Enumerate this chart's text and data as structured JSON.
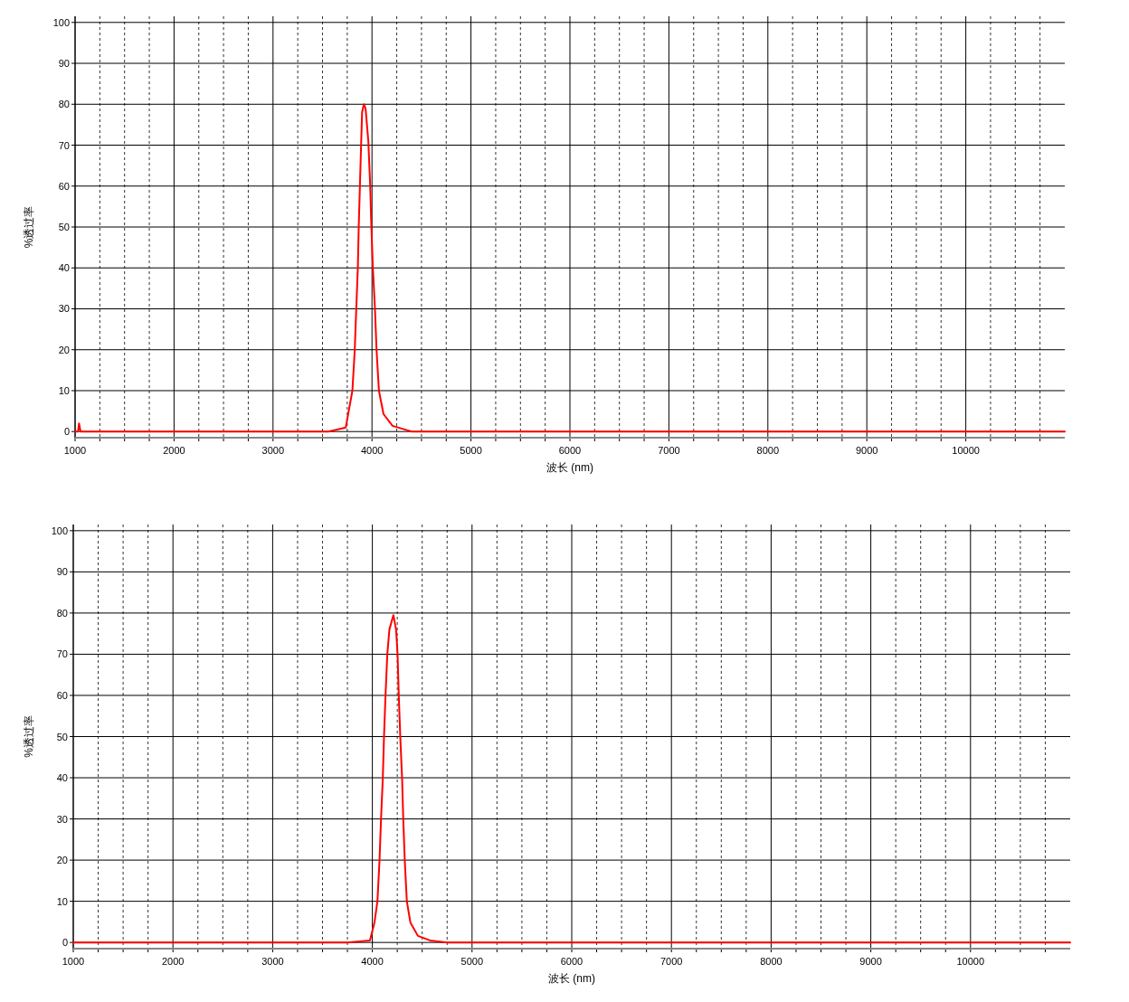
{
  "chart_data": [
    {
      "type": "line",
      "xlabel": "波长 (nm)",
      "ylabel": "%透过率",
      "grid": true,
      "xlim": [
        1000,
        11000
      ],
      "ylim": [
        -1.5,
        101.5
      ],
      "xticks": [
        1000,
        {
          "value": 1250,
          "label": null
        },
        {
          "value": 1500,
          "label": null
        },
        {
          "value": 1750,
          "label": null
        },
        2000,
        {
          "value": 2250,
          "label": null
        },
        {
          "value": 2500,
          "label": null
        },
        {
          "value": 2750,
          "label": null
        },
        3000,
        {
          "value": 3250,
          "label": null
        },
        {
          "value": 3500,
          "label": null
        },
        {
          "value": 3750,
          "label": null
        },
        4000,
        {
          "value": 4250,
          "label": null
        },
        {
          "value": 4500,
          "label": null
        },
        {
          "value": 4750,
          "label": null
        },
        5000,
        {
          "value": 5250,
          "label": null
        },
        {
          "value": 5500,
          "label": null
        },
        {
          "value": 5750,
          "label": null
        },
        6000,
        {
          "value": 6250,
          "label": null
        },
        {
          "value": 6500,
          "label": null
        },
        {
          "value": 6750,
          "label": null
        },
        7000,
        {
          "value": 7250,
          "label": null
        },
        {
          "value": 7500,
          "label": null
        },
        {
          "value": 7750,
          "label": null
        },
        8000,
        {
          "value": 8250,
          "label": null
        },
        {
          "value": 8500,
          "label": null
        },
        {
          "value": 8750,
          "label": null
        },
        9000,
        {
          "value": 9250,
          "label": null
        },
        {
          "value": 9500,
          "label": null
        },
        {
          "value": 9750,
          "label": null
        },
        10000,
        {
          "value": 10250,
          "label": null
        },
        {
          "value": 10500,
          "label": null
        },
        {
          "value": 10750,
          "label": null
        }
      ],
      "yticks": [
        0,
        10,
        20,
        30,
        40,
        50,
        60,
        70,
        80,
        90,
        100
      ],
      "series": [
        {
          "color": "#ff0000",
          "x": [
            1000,
            1030,
            1040,
            1055,
            3560,
            3735,
            3802,
            3826,
            3841,
            3857,
            3866,
            3878,
            3890,
            3900,
            3918,
            3935,
            3963,
            3982,
            3994,
            4009,
            4030,
            4046,
            4070,
            4116,
            4207,
            4345,
            4400,
            11000
          ],
          "values": [
            0,
            0,
            2,
            0,
            0,
            1,
            10,
            20,
            30,
            40,
            50,
            60,
            70,
            78,
            80,
            79,
            71,
            60,
            50,
            40,
            30,
            20,
            10,
            4.3,
            1.4,
            0.4,
            0,
            0
          ]
        }
      ]
    },
    {
      "type": "line",
      "xlabel": "波长 (nm)",
      "ylabel": "%透过率",
      "grid": true,
      "xlim": [
        1000,
        11000
      ],
      "ylim": [
        -1.5,
        101.5
      ],
      "xticks": [
        1000,
        {
          "value": 1250,
          "label": null
        },
        {
          "value": 1500,
          "label": null
        },
        {
          "value": 1750,
          "label": null
        },
        2000,
        {
          "value": 2250,
          "label": null
        },
        {
          "value": 2500,
          "label": null
        },
        {
          "value": 2750,
          "label": null
        },
        3000,
        {
          "value": 3250,
          "label": null
        },
        {
          "value": 3500,
          "label": null
        },
        {
          "value": 3750,
          "label": null
        },
        4000,
        {
          "value": 4250,
          "label": null
        },
        {
          "value": 4500,
          "label": null
        },
        {
          "value": 4750,
          "label": null
        },
        5000,
        {
          "value": 5250,
          "label": null
        },
        {
          "value": 5500,
          "label": null
        },
        {
          "value": 5750,
          "label": null
        },
        6000,
        {
          "value": 6250,
          "label": null
        },
        {
          "value": 6500,
          "label": null
        },
        {
          "value": 6750,
          "label": null
        },
        7000,
        {
          "value": 7250,
          "label": null
        },
        {
          "value": 7500,
          "label": null
        },
        {
          "value": 7750,
          "label": null
        },
        8000,
        {
          "value": 8250,
          "label": null
        },
        {
          "value": 8500,
          "label": null
        },
        {
          "value": 8750,
          "label": null
        },
        9000,
        {
          "value": 9250,
          "label": null
        },
        {
          "value": 9500,
          "label": null
        },
        {
          "value": 9750,
          "label": null
        },
        10000,
        {
          "value": 10250,
          "label": null
        },
        {
          "value": 10500,
          "label": null
        },
        {
          "value": 10750,
          "label": null
        }
      ],
      "yticks": [
        0,
        10,
        20,
        30,
        40,
        50,
        60,
        70,
        80,
        90,
        100
      ],
      "series": [
        {
          "color": "#ff0000",
          "x": [
            1000,
            3750,
            3976,
            4021,
            4051,
            4072,
            4087,
            4105,
            4117,
            4132,
            4150,
            4171,
            4211,
            4238,
            4253,
            4265,
            4280,
            4298,
            4310,
            4325,
            4346,
            4382,
            4457,
            4578,
            4750,
            11000
          ],
          "values": [
            0,
            0,
            0.5,
            4.8,
            10,
            20,
            30,
            40,
            50,
            60,
            70,
            76,
            79.5,
            76,
            70,
            60,
            50,
            40,
            30,
            20,
            10,
            4.8,
            1.6,
            0.5,
            0,
            0
          ]
        }
      ]
    }
  ]
}
